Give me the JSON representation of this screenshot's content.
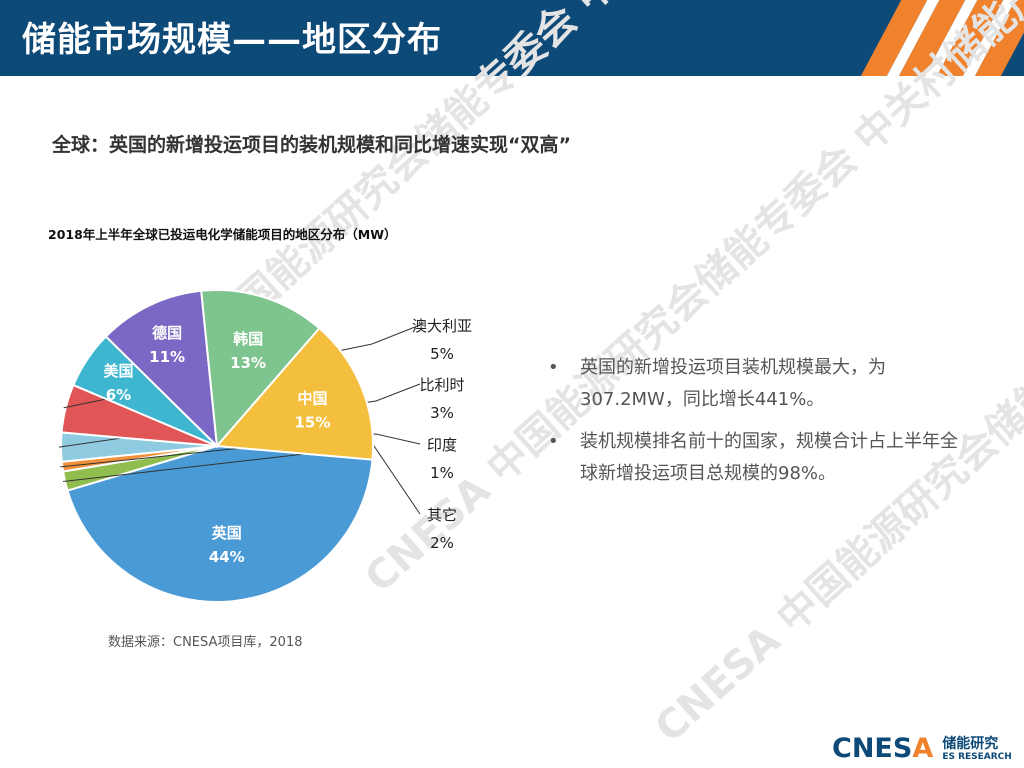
{
  "header": {
    "title": "储能市场规模——地区分布"
  },
  "subheading": "全球：英国的新增投运项目的装机规模和同比增速实现“双高”",
  "chart_data": {
    "type": "pie",
    "title": "2018年上半年全球已投运电化学储能项目的地区分布（MW）",
    "slices": [
      {
        "name": "英国",
        "value": 44,
        "label": "44%",
        "color": "#4a9ad6"
      },
      {
        "name": "其它",
        "value": 2,
        "label": "2%",
        "color": "#8fbd4e"
      },
      {
        "name": "印度",
        "value": 1,
        "label": "1%",
        "color": "#f0913a"
      },
      {
        "name": "比利时",
        "value": 3,
        "label": "3%",
        "color": "#8ecbe0"
      },
      {
        "name": "澳大利亚",
        "value": 5,
        "label": "5%",
        "color": "#e05656"
      },
      {
        "name": "美国",
        "value": 6,
        "label": "6%",
        "color": "#3fb6cf"
      },
      {
        "name": "德国",
        "value": 11,
        "label": "11%",
        "color": "#7b68c4"
      },
      {
        "name": "韩国",
        "value": 13,
        "label": "13%",
        "color": "#7ec48e"
      },
      {
        "name": "中国",
        "value": 15,
        "label": "15%",
        "color": "#f3bf3c"
      }
    ]
  },
  "source": "数据来源：CNESA项目库，2018",
  "bullets": [
    {
      "dot": "•",
      "text": "英国的新增投运项目装机规模最大，为307.2MW，同比增长441%。"
    },
    {
      "dot": "•",
      "text": "装机规模排名前十的国家，规模合计占上半年全球新增投运项目总规模的98%。"
    }
  ],
  "watermark": {
    "text": "CNESA 中国能源研究会储能专委会 中关村储能产业技术联盟"
  },
  "logo": {
    "mark_main": "CNES",
    "mark_accent": "A",
    "cn": "储能研究",
    "en": "ES RESEARCH"
  }
}
